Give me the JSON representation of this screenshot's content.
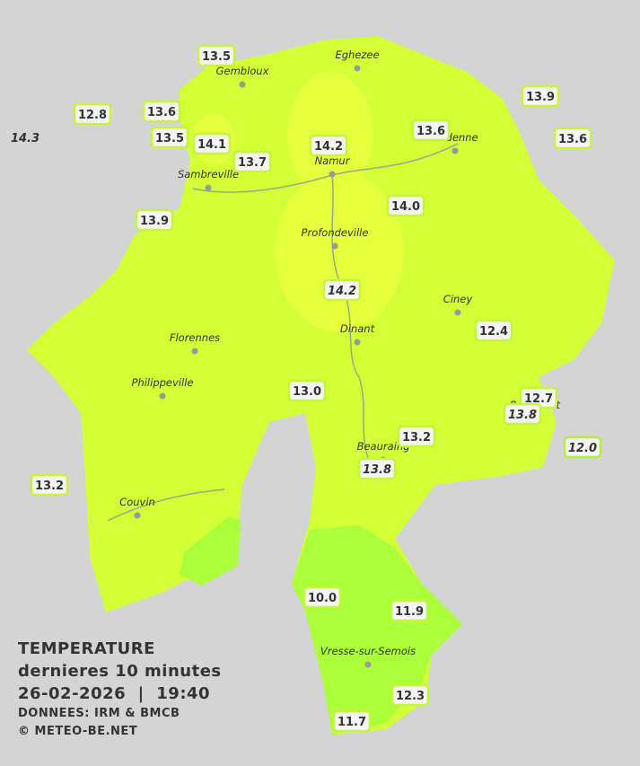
{
  "towns": [
    "Eghezee",
    "Gembloux",
    "Andenne",
    "Namur",
    "Sambreville",
    "Profondeville",
    "Ciney",
    "Dinant",
    "Florennes",
    "Philippeville",
    "Beauraing",
    "Rochefort",
    "Couvin",
    "Vresse-sur-Semois"
  ],
  "stations": [
    "13.5",
    "12.8",
    "13.6",
    "14.3",
    "13.5",
    "14.1",
    "13.7",
    "14.2",
    "13.6",
    "13.9",
    "13.6",
    "13.9",
    "14.0",
    "14.2",
    "12.4",
    "13.0",
    "12.7",
    "13.8",
    "12.0",
    "13.2",
    "13.8",
    "13.2",
    "10.0",
    "11.9",
    "12.3",
    "11.7"
  ],
  "legend": {
    "title": "TEMPERATURE",
    "subtitle": "dernieres 10 minutes",
    "datetime": "26-02-2026  |  19:40",
    "source": "DONNEES: IRM & BMCB",
    "copyright": "© METEO-BE.NET"
  }
}
